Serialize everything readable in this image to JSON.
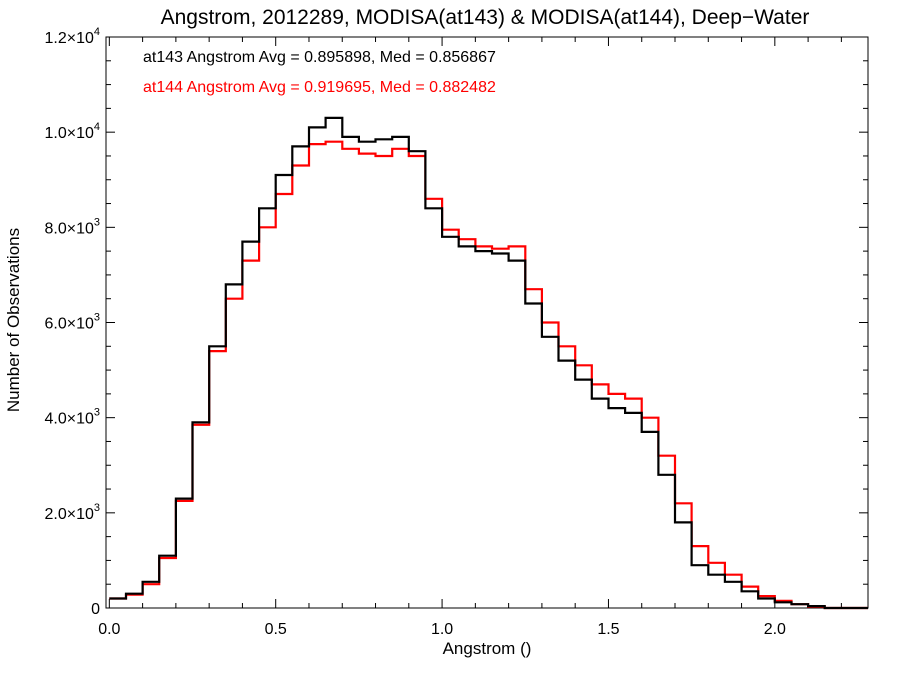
{
  "chart_data": {
    "type": "line",
    "style": "step-histogram",
    "title": "Angstrom, 2012289, MODISA(at143) & MODISA(at144), Deep−Water",
    "xlabel": "Angstrom ()",
    "ylabel": "Number of Observations",
    "xlim": [
      -0.01,
      2.28
    ],
    "ylim": [
      0,
      12000
    ],
    "grid": false,
    "legend_position": "top-left",
    "x_ticks": [
      {
        "value": 0.0,
        "label": "0.0"
      },
      {
        "value": 0.5,
        "label": "0.5"
      },
      {
        "value": 1.0,
        "label": "1.0"
      },
      {
        "value": 1.5,
        "label": "1.5"
      },
      {
        "value": 2.0,
        "label": "2.0"
      }
    ],
    "y_ticks": [
      {
        "value": 0,
        "mantissa": "0",
        "exponent": ""
      },
      {
        "value": 2000,
        "mantissa": "2.0×10",
        "exponent": "3"
      },
      {
        "value": 4000,
        "mantissa": "4.0×10",
        "exponent": "3"
      },
      {
        "value": 6000,
        "mantissa": "6.0×10",
        "exponent": "3"
      },
      {
        "value": 8000,
        "mantissa": "8.0×10",
        "exponent": "3"
      },
      {
        "value": 10000,
        "mantissa": "1.0×10",
        "exponent": "4"
      },
      {
        "value": 12000,
        "mantissa": "1.2×10",
        "exponent": "4"
      }
    ],
    "x_minor_step": 0.1,
    "y_minor_step": 500,
    "series": [
      {
        "name": "at143",
        "color": "#000000",
        "stats": "at143 Angstrom Avg = 0.895898, Med = 0.856867",
        "x": [
          0.0,
          0.05,
          0.1,
          0.15,
          0.2,
          0.25,
          0.3,
          0.35,
          0.4,
          0.45,
          0.5,
          0.55,
          0.6,
          0.65,
          0.7,
          0.75,
          0.8,
          0.85,
          0.9,
          0.95,
          1.0,
          1.05,
          1.1,
          1.15,
          1.2,
          1.25,
          1.3,
          1.35,
          1.4,
          1.45,
          1.5,
          1.55,
          1.6,
          1.65,
          1.7,
          1.75,
          1.8,
          1.85,
          1.9,
          1.95,
          2.0,
          2.05,
          2.1,
          2.15,
          2.2,
          2.25
        ],
        "y": [
          200,
          300,
          550,
          1100,
          2300,
          3900,
          5500,
          6800,
          7700,
          8400,
          9100,
          9700,
          10100,
          10300,
          9900,
          9800,
          9850,
          9900,
          9600,
          8400,
          7800,
          7600,
          7500,
          7450,
          7300,
          6400,
          5700,
          5200,
          4800,
          4400,
          4200,
          4100,
          3700,
          2800,
          1800,
          900,
          700,
          550,
          350,
          200,
          120,
          80,
          40,
          0,
          0,
          0
        ]
      },
      {
        "name": "at144",
        "color": "#ff0000",
        "stats": "at144 Angstrom Avg = 0.919695, Med = 0.882482",
        "x": [
          0.0,
          0.05,
          0.1,
          0.15,
          0.2,
          0.25,
          0.3,
          0.35,
          0.4,
          0.45,
          0.5,
          0.55,
          0.6,
          0.65,
          0.7,
          0.75,
          0.8,
          0.85,
          0.9,
          0.95,
          1.0,
          1.05,
          1.1,
          1.15,
          1.2,
          1.25,
          1.3,
          1.35,
          1.4,
          1.45,
          1.5,
          1.55,
          1.6,
          1.65,
          1.7,
          1.75,
          1.8,
          1.85,
          1.9,
          1.95,
          2.0,
          2.05,
          2.1,
          2.15,
          2.2,
          2.25
        ],
        "y": [
          200,
          280,
          500,
          1050,
          2250,
          3850,
          5400,
          6500,
          7300,
          8000,
          8700,
          9300,
          9750,
          9800,
          9650,
          9550,
          9500,
          9650,
          9500,
          8600,
          7950,
          7750,
          7600,
          7550,
          7600,
          6700,
          6000,
          5500,
          5100,
          4700,
          4500,
          4400,
          4000,
          3200,
          2200,
          1300,
          950,
          700,
          450,
          250,
          150,
          80,
          30,
          0,
          0,
          0
        ]
      }
    ]
  }
}
